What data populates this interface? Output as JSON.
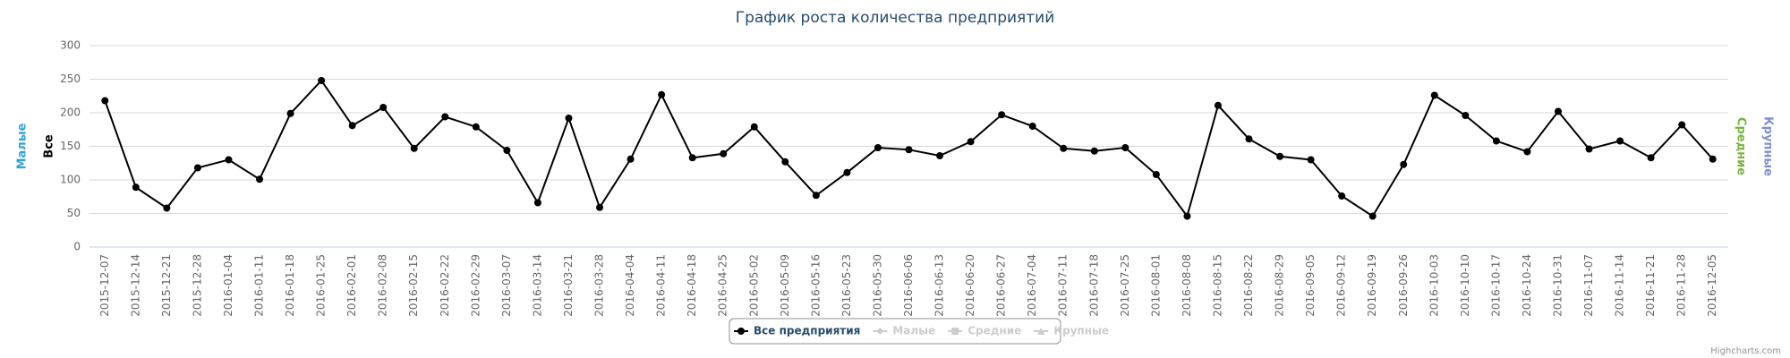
{
  "chart_data": {
    "type": "line",
    "title": "График роста количества предприятий",
    "categories": [
      "2015-12-07",
      "2015-12-14",
      "2015-12-21",
      "2015-12-28",
      "2016-01-04",
      "2016-01-11",
      "2016-01-18",
      "2016-01-25",
      "2016-02-01",
      "2016-02-08",
      "2016-02-15",
      "2016-02-22",
      "2016-02-29",
      "2016-03-07",
      "2016-03-14",
      "2016-03-21",
      "2016-03-28",
      "2016-04-04",
      "2016-04-11",
      "2016-04-18",
      "2016-04-25",
      "2016-05-02",
      "2016-05-09",
      "2016-05-16",
      "2016-05-23",
      "2016-05-30",
      "2016-06-06",
      "2016-06-13",
      "2016-06-20",
      "2016-06-27",
      "2016-07-04",
      "2016-07-11",
      "2016-07-18",
      "2016-07-25",
      "2016-08-01",
      "2016-08-08",
      "2016-08-15",
      "2016-08-22",
      "2016-08-29",
      "2016-09-05",
      "2016-09-12",
      "2016-09-19",
      "2016-09-26",
      "2016-10-03",
      "2016-10-10",
      "2016-10-17",
      "2016-10-24",
      "2016-10-31",
      "2016-11-07",
      "2016-11-14",
      "2016-11-21",
      "2016-11-28",
      "2016-12-05"
    ],
    "series": [
      {
        "name": "Все предприятия",
        "color": "#000000",
        "values": [
          218,
          89,
          58,
          118,
          130,
          101,
          199,
          248,
          181,
          208,
          147,
          194,
          179,
          144,
          66,
          192,
          59,
          131,
          227,
          133,
          139,
          179,
          127,
          77,
          111,
          148,
          145,
          136,
          157,
          197,
          180,
          147,
          143,
          148,
          108,
          46,
          211,
          161,
          135,
          130,
          76,
          46,
          123,
          226,
          196,
          158,
          142,
          202,
          146,
          158,
          133,
          182,
          131
        ]
      }
    ],
    "hidden_series": [
      "Малые",
      "Средние",
      "Крупные"
    ],
    "left_axis_titles": [
      {
        "text": "Малые",
        "color": "#2fa4d8"
      },
      {
        "text": "Все",
        "color": "#000000"
      }
    ],
    "right_axis_titles": [
      {
        "text": "Средние",
        "color": "#7cb342"
      },
      {
        "text": "Крупные",
        "color": "#7f8fd0"
      }
    ],
    "ylim": [
      0,
      300
    ],
    "yticks": [
      0,
      50,
      100,
      150,
      200,
      250,
      300
    ],
    "grid": true,
    "credits": "Highcharts.com"
  }
}
